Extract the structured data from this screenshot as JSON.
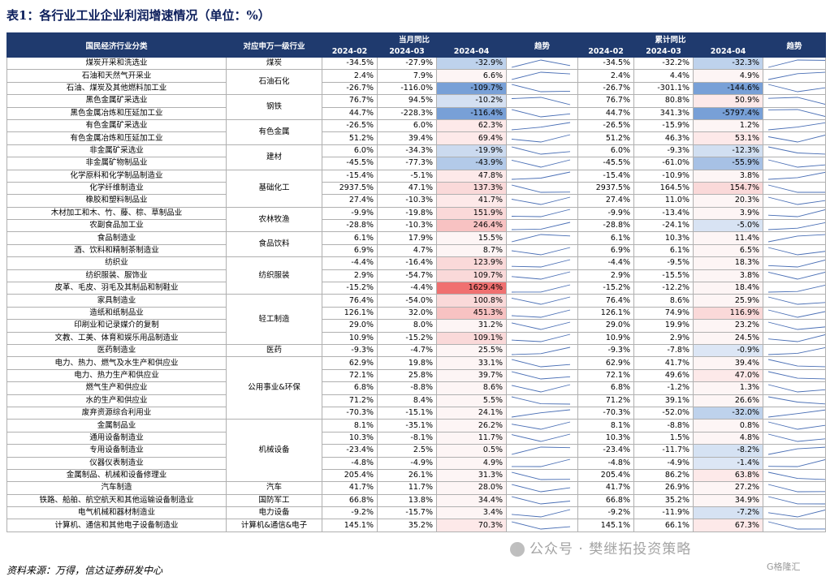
{
  "title": "表1：各行业工业企业利润增速情况（单位：%）",
  "headers": {
    "industry": "国民经济行业分类",
    "sector": "对应申万一级行业",
    "monthly_group": "当月同比",
    "cumulative_group": "累计同比",
    "m1": "2024-02",
    "m2": "2024-03",
    "m3": "2024-04",
    "trend": "趋势",
    "c1": "2024-02",
    "c2": "2024-03",
    "c3": "2024-04",
    "trend2": "趋势"
  },
  "groups": [
    {
      "name": "煤炭",
      "span": 1
    },
    {
      "name": "石油石化",
      "span": 2
    },
    {
      "name": "钢铁",
      "span": 2
    },
    {
      "name": "有色金属",
      "span": 2
    },
    {
      "name": "建材",
      "span": 2
    },
    {
      "name": "基础化工",
      "span": 3
    },
    {
      "name": "农林牧渔",
      "span": 2
    },
    {
      "name": "食品饮料",
      "span": 2
    },
    {
      "name": "纺织服装",
      "span": 3
    },
    {
      "name": "轻工制造",
      "span": 4
    },
    {
      "name": "医药",
      "span": 1
    },
    {
      "name": "公用事业&环保",
      "span": 5
    },
    {
      "name": "机械设备",
      "span": 5
    },
    {
      "name": "汽车",
      "span": 1
    },
    {
      "name": "国防军工",
      "span": 1
    },
    {
      "name": "电力设备",
      "span": 1
    },
    {
      "name": "计算机&通信&电子",
      "span": 1
    }
  ],
  "rows": [
    {
      "industry": "煤炭开采和洗选业",
      "m": [
        "-34.5%",
        "-27.9%",
        "-32.9%"
      ],
      "c": [
        "-34.5%",
        "-32.2%",
        "-32.3%"
      ]
    },
    {
      "industry": "石油和天然气开采业",
      "m": [
        "2.4%",
        "7.9%",
        "6.6%"
      ],
      "c": [
        "2.4%",
        "4.4%",
        "4.9%"
      ]
    },
    {
      "industry": "石油、煤炭及其他燃料加工业",
      "m": [
        "-26.7%",
        "-116.0%",
        "-109.7%"
      ],
      "c": [
        "-26.7%",
        "-301.1%",
        "-144.6%"
      ]
    },
    {
      "industry": "黑色金属矿采选业",
      "m": [
        "76.7%",
        "94.5%",
        "-10.2%"
      ],
      "c": [
        "76.7%",
        "80.8%",
        "50.9%"
      ]
    },
    {
      "industry": "黑色金属冶炼和压延加工业",
      "m": [
        "44.7%",
        "-228.3%",
        "-116.4%"
      ],
      "c": [
        "44.7%",
        "341.3%",
        "-5797.4%"
      ]
    },
    {
      "industry": "有色金属矿采选业",
      "m": [
        "-26.5%",
        "6.0%",
        "62.3%"
      ],
      "c": [
        "-26.5%",
        "-15.9%",
        "1.2%"
      ]
    },
    {
      "industry": "有色金属冶炼和压延加工业",
      "m": [
        "51.2%",
        "39.4%",
        "69.4%"
      ],
      "c": [
        "51.2%",
        "46.3%",
        "53.1%"
      ]
    },
    {
      "industry": "非金属矿采选业",
      "m": [
        "6.0%",
        "-34.3%",
        "-19.9%"
      ],
      "c": [
        "6.0%",
        "-9.3%",
        "-12.3%"
      ]
    },
    {
      "industry": "非金属矿物制品业",
      "m": [
        "-45.5%",
        "-77.3%",
        "-43.9%"
      ],
      "c": [
        "-45.5%",
        "-61.0%",
        "-55.9%"
      ]
    },
    {
      "industry": "化学原料和化学制品制造业",
      "m": [
        "-15.4%",
        "-5.1%",
        "47.8%"
      ],
      "c": [
        "-15.4%",
        "-10.9%",
        "3.8%"
      ]
    },
    {
      "industry": "化学纤维制造业",
      "m": [
        "2937.5%",
        "47.1%",
        "137.3%"
      ],
      "c": [
        "2937.5%",
        "164.5%",
        "154.7%"
      ]
    },
    {
      "industry": "橡胶和塑料制品业",
      "m": [
        "27.4%",
        "-10.3%",
        "41.7%"
      ],
      "c": [
        "27.4%",
        "11.0%",
        "20.3%"
      ]
    },
    {
      "industry": "木材加工和木、竹、藤、棕、草制品业",
      "m": [
        "-9.9%",
        "-19.8%",
        "151.9%"
      ],
      "c": [
        "-9.9%",
        "-13.4%",
        "3.9%"
      ]
    },
    {
      "industry": "农副食品加工业",
      "m": [
        "-28.8%",
        "-10.3%",
        "246.4%"
      ],
      "c": [
        "-28.8%",
        "-24.1%",
        "-5.0%"
      ]
    },
    {
      "industry": "食品制造业",
      "m": [
        "6.1%",
        "17.9%",
        "15.5%"
      ],
      "c": [
        "6.1%",
        "10.3%",
        "11.4%"
      ]
    },
    {
      "industry": "酒、饮料和精制茶制造业",
      "m": [
        "6.9%",
        "4.7%",
        "8.7%"
      ],
      "c": [
        "6.9%",
        "6.1%",
        "6.5%"
      ]
    },
    {
      "industry": "纺织业",
      "m": [
        "-4.4%",
        "-16.4%",
        "123.9%"
      ],
      "c": [
        "-4.4%",
        "-9.5%",
        "18.3%"
      ]
    },
    {
      "industry": "纺织服装、服饰业",
      "m": [
        "2.9%",
        "-54.7%",
        "109.7%"
      ],
      "c": [
        "2.9%",
        "-15.5%",
        "3.8%"
      ]
    },
    {
      "industry": "皮革、毛皮、羽毛及其制品和制鞋业",
      "m": [
        "-15.2%",
        "-4.4%",
        "1629.4%"
      ],
      "c": [
        "-15.2%",
        "-12.2%",
        "18.4%"
      ]
    },
    {
      "industry": "家具制造业",
      "m": [
        "76.4%",
        "-54.0%",
        "100.8%"
      ],
      "c": [
        "76.4%",
        "8.6%",
        "25.9%"
      ]
    },
    {
      "industry": "造纸和纸制品业",
      "m": [
        "126.1%",
        "32.0%",
        "451.3%"
      ],
      "c": [
        "126.1%",
        "74.9%",
        "116.9%"
      ]
    },
    {
      "industry": "印刷业和记录媒介的复制",
      "m": [
        "29.0%",
        "8.0%",
        "31.2%"
      ],
      "c": [
        "29.0%",
        "19.9%",
        "23.2%"
      ]
    },
    {
      "industry": "文教、工美、体育和娱乐用品制造业",
      "m": [
        "10.9%",
        "-15.2%",
        "109.1%"
      ],
      "c": [
        "10.9%",
        "2.9%",
        "24.5%"
      ]
    },
    {
      "industry": "医药制造业",
      "m": [
        "-9.3%",
        "-4.7%",
        "25.5%"
      ],
      "c": [
        "-9.3%",
        "-7.8%",
        "-0.9%"
      ]
    },
    {
      "industry": "电力、热力、燃气及水生产和供应业",
      "m": [
        "62.9%",
        "19.8%",
        "33.1%"
      ],
      "c": [
        "62.9%",
        "41.7%",
        "39.4%"
      ]
    },
    {
      "industry": "电力、热力生产和供应业",
      "m": [
        "72.1%",
        "25.8%",
        "39.7%"
      ],
      "c": [
        "72.1%",
        "49.6%",
        "47.0%"
      ]
    },
    {
      "industry": "燃气生产和供应业",
      "m": [
        "6.8%",
        "-8.8%",
        "8.6%"
      ],
      "c": [
        "6.8%",
        "-1.2%",
        "1.3%"
      ]
    },
    {
      "industry": "水的生产和供应业",
      "m": [
        "71.2%",
        "8.4%",
        "5.5%"
      ],
      "c": [
        "71.2%",
        "39.1%",
        "26.6%"
      ]
    },
    {
      "industry": "废弃资源综合利用业",
      "m": [
        "-70.3%",
        "-15.1%",
        "24.1%"
      ],
      "c": [
        "-70.3%",
        "-52.0%",
        "-32.0%"
      ]
    },
    {
      "industry": "金属制品业",
      "m": [
        "8.1%",
        "-35.1%",
        "26.2%"
      ],
      "c": [
        "8.1%",
        "-8.8%",
        "0.8%"
      ]
    },
    {
      "industry": "通用设备制造业",
      "m": [
        "10.3%",
        "-8.1%",
        "11.7%"
      ],
      "c": [
        "10.3%",
        "1.5%",
        "4.8%"
      ]
    },
    {
      "industry": "专用设备制造业",
      "m": [
        "-23.4%",
        "2.5%",
        "0.5%"
      ],
      "c": [
        "-23.4%",
        "-11.7%",
        "-8.2%"
      ]
    },
    {
      "industry": "仪器仪表制造业",
      "m": [
        "-4.8%",
        "-4.9%",
        "4.9%"
      ],
      "c": [
        "-4.8%",
        "-4.9%",
        "-1.4%"
      ]
    },
    {
      "industry": "金属制品、机械和设备修理业",
      "m": [
        "205.4%",
        "26.1%",
        "31.3%"
      ],
      "c": [
        "205.4%",
        "86.2%",
        "63.8%"
      ]
    },
    {
      "industry": "汽车制造",
      "m": [
        "41.7%",
        "11.7%",
        "28.0%"
      ],
      "c": [
        "41.7%",
        "26.9%",
        "27.2%"
      ]
    },
    {
      "industry": "铁路、船舶、航空航天和其他运输设备制造业",
      "m": [
        "66.8%",
        "13.8%",
        "34.4%"
      ],
      "c": [
        "66.8%",
        "35.2%",
        "34.9%"
      ]
    },
    {
      "industry": "电气机械和器材制造业",
      "m": [
        "-9.2%",
        "-15.7%",
        "3.4%"
      ],
      "c": [
        "-9.2%",
        "-11.9%",
        "-7.2%"
      ]
    },
    {
      "industry": "计算机、通信和其他电子设备制造业",
      "m": [
        "145.1%",
        "35.2%",
        "70.3%"
      ],
      "c": [
        "145.1%",
        "66.1%",
        "67.3%"
      ]
    }
  ],
  "colors": {
    "header_bg": "#1f3a6e",
    "negative_highlight": "#b9cce8",
    "positive_strong": "#f07070",
    "positive_soft": "#fbd3d3",
    "sparkline": "#4a6fb5"
  },
  "footer": "资料来源：万得，信达证券研发中心",
  "watermark": "公众号 · 樊继拓投资策略",
  "corner_mark": "G格隆汇"
}
